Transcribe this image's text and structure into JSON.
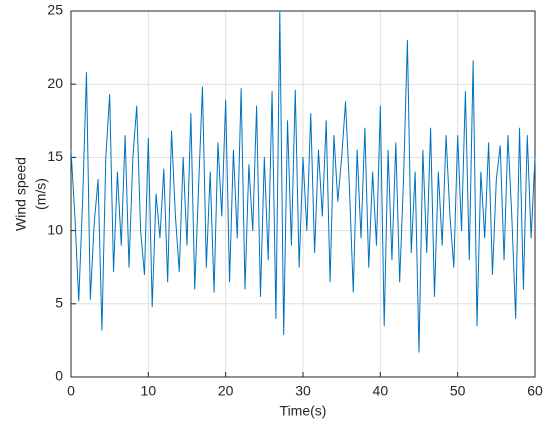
{
  "chart_data": {
    "type": "line",
    "xlabel": "Time(s)",
    "ylabel": [
      "Wind speed",
      "(m/s)"
    ],
    "x": [
      0,
      0.5,
      1,
      1.5,
      2,
      2.5,
      3,
      3.5,
      4,
      4.5,
      5,
      5.5,
      6,
      6.5,
      7,
      7.5,
      8,
      8.5,
      9,
      9.5,
      10,
      10.5,
      11,
      11.5,
      12,
      12.5,
      13,
      13.5,
      14,
      14.5,
      15,
      15.5,
      16,
      16.5,
      17,
      17.5,
      18,
      18.5,
      19,
      19.5,
      20,
      20.5,
      21,
      21.5,
      22,
      22.5,
      23,
      23.5,
      24,
      24.5,
      25,
      25.5,
      26,
      26.5,
      27,
      27.5,
      28,
      28.5,
      29,
      29.5,
      30,
      30.5,
      31,
      31.5,
      32,
      32.5,
      33,
      33.5,
      34,
      34.5,
      35,
      35.5,
      36,
      36.5,
      37,
      37.5,
      38,
      38.5,
      39,
      39.5,
      40,
      40.5,
      41,
      41.5,
      42,
      42.5,
      43,
      43.5,
      44,
      44.5,
      45,
      45.5,
      46,
      46.5,
      47,
      47.5,
      48,
      48.5,
      49,
      49.5,
      50,
      50.5,
      51,
      51.5,
      52,
      52.5,
      53,
      53.5,
      54,
      54.5,
      55,
      55.5,
      56,
      56.5,
      57,
      57.5,
      58,
      58.5,
      59,
      59.5,
      60
    ],
    "series": [
      {
        "color": "#0072bd",
        "values": [
          15.5,
          11,
          5.2,
          12,
          20.8,
          5.3,
          10.5,
          13.5,
          3.2,
          15,
          19.3,
          7.2,
          14,
          9,
          16.5,
          7.5,
          15,
          18.5,
          10,
          7,
          16.3,
          4.8,
          12.5,
          9.5,
          14.2,
          6.5,
          16.8,
          11,
          7.2,
          15,
          9,
          18,
          6,
          13,
          19.8,
          7.5,
          14,
          5.8,
          16,
          11,
          18.9,
          6.5,
          15.5,
          9.5,
          19.7,
          6,
          14.5,
          10,
          18.5,
          5.5,
          15,
          8,
          19.5,
          4,
          25,
          2.9,
          17.5,
          9,
          19.6,
          7.5,
          15,
          10,
          18,
          8.5,
          15.5,
          11,
          17.5,
          6.5,
          16.5,
          12,
          15,
          18.8,
          13,
          5.8,
          15.5,
          9.5,
          17,
          7.5,
          14,
          9,
          18.5,
          3.5,
          15.5,
          8,
          16,
          6.5,
          13.5,
          23,
          8.5,
          14,
          1.7,
          15.5,
          8.5,
          17,
          5.5,
          14,
          9,
          16.5,
          11,
          7.5,
          16.5,
          10,
          19.5,
          8,
          21.6,
          3.5,
          14,
          9.5,
          16,
          7,
          13.5,
          15.8,
          8,
          16.5,
          11,
          4,
          17,
          6,
          16.5,
          9.5,
          15
        ]
      }
    ],
    "xlim": [
      0,
      60
    ],
    "xticks": [
      0,
      10,
      20,
      30,
      40,
      50,
      60
    ],
    "ylim": [
      0,
      25
    ],
    "yticks": [
      0,
      5,
      10,
      15,
      20,
      25
    ],
    "grid": true
  }
}
